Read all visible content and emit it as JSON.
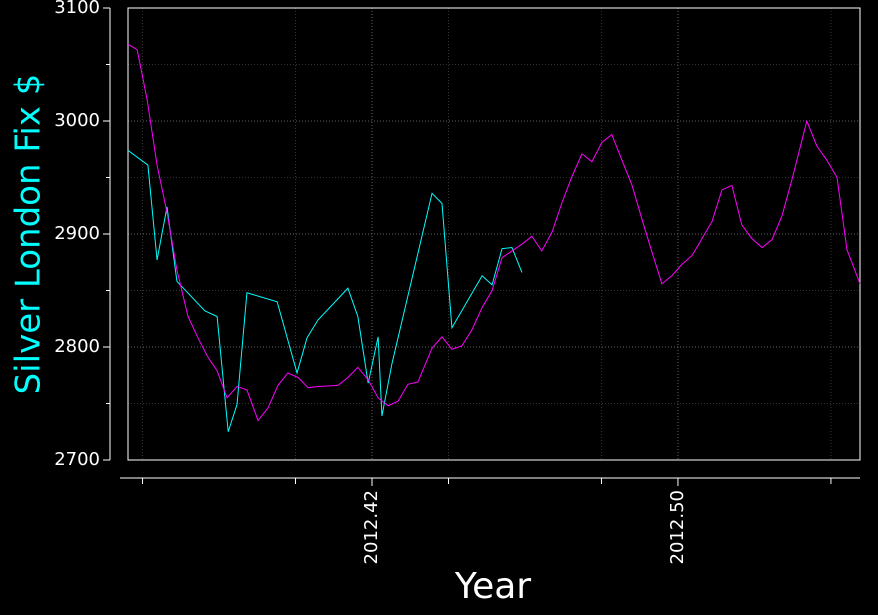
{
  "chart_data": {
    "type": "line",
    "xlabel": "Year",
    "ylabel": "Silver London Fix $",
    "ylabel_color": "#00ffff",
    "xlim": [
      2012.3562,
      2012.5476
    ],
    "ylim": [
      2700,
      3100
    ],
    "xticks": [
      2012.42,
      {
        "value": 2012.5,
        "label": "2012.50"
      }
    ],
    "xticks_minor": [
      2012.36,
      2012.4,
      2012.44,
      2012.48,
      2012.54
    ],
    "yticks": [
      2700,
      2800,
      2900,
      3000,
      3100
    ],
    "yticks_minor": [
      2750,
      2850,
      2950,
      3050
    ],
    "grid": true,
    "series": [
      {
        "color": "#00ffff",
        "x": [
          2012.3562,
          2012.3614,
          2012.3638,
          2012.3664,
          2012.369,
          2012.3763,
          2012.3795,
          2012.3824,
          2012.3847,
          2012.3873,
          2012.3952,
          2012.4004,
          2012.403,
          2012.4059,
          2012.4137,
          2012.4163,
          2012.419,
          2012.4216,
          2012.4226,
          2012.4252,
          2012.4357,
          2012.4383,
          2012.4409,
          2012.4488,
          2012.4514,
          2012.454,
          2012.4566,
          2012.4592
        ],
        "values": [
          2974,
          2961,
          2877,
          2924,
          2858,
          2832,
          2827,
          2725,
          2749,
          2848,
          2840,
          2777,
          2808,
          2824,
          2852,
          2827,
          2768,
          2809,
          2739,
          2785,
          2936,
          2927,
          2817,
          2863,
          2855,
          2887,
          2888,
          2866
        ]
      },
      {
        "color": "#ff00ff",
        "x": [
          2012.3562,
          2012.3586,
          2012.3612,
          2012.3638,
          2012.3664,
          2012.369,
          2012.3719,
          2012.3745,
          2012.3771,
          2012.3795,
          2012.3821,
          2012.3847,
          2012.3873,
          2012.3902,
          2012.3928,
          2012.3954,
          2012.398,
          2012.4007,
          2012.4033,
          2012.4059,
          2012.4111,
          2012.4137,
          2012.4163,
          2012.419,
          2012.4216,
          2012.4242,
          2012.4268,
          2012.4294,
          2012.432,
          2012.4357,
          2012.4383,
          2012.4409,
          2012.4435,
          2012.4461,
          2012.4488,
          2012.4514,
          2012.454,
          2012.4566,
          2012.4592,
          2012.4618,
          2012.4644,
          2012.4671,
          2012.4697,
          2012.4723,
          2012.4749,
          2012.4775,
          2012.4801,
          2012.4827,
          2012.4854,
          2012.488,
          2012.4906,
          2012.4932,
          2012.4958,
          2012.4984,
          2012.501,
          2012.5037,
          2012.5063,
          2012.5089,
          2012.5115,
          2012.5141,
          2012.5167,
          2012.5193,
          2012.522,
          2012.5246,
          2012.5272,
          2012.5298,
          2012.5337,
          2012.5363,
          2012.539,
          2012.5416,
          2012.5442,
          2012.5476
        ],
        "values": [
          3068,
          3063,
          3019,
          2961,
          2919,
          2868,
          2827,
          2808,
          2791,
          2779,
          2755,
          2765,
          2762,
          2735,
          2746,
          2766,
          2777,
          2773,
          2764,
          2765,
          2766,
          2773,
          2782,
          2771,
          2755,
          2748,
          2752,
          2767,
          2769,
          2799,
          2809,
          2798,
          2801,
          2815,
          2835,
          2850,
          2879,
          2885,
          2891,
          2898,
          2885,
          2902,
          2928,
          2951,
          2971,
          2964,
          2981,
          2988,
          2965,
          2943,
          2913,
          2884,
          2856,
          2863,
          2873,
          2881,
          2896,
          2911,
          2939,
          2943,
          2908,
          2896,
          2888,
          2895,
          2916,
          2948,
          3000,
          2978,
          2965,
          2950,
          2886,
          2856
        ]
      }
    ]
  }
}
